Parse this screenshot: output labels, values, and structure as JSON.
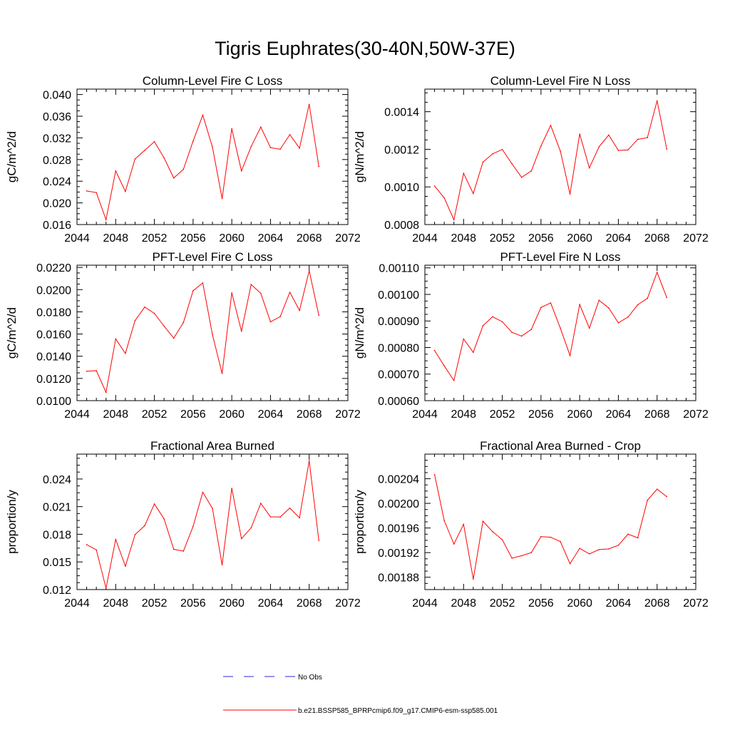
{
  "figure": {
    "title": "Tigris Euphrates(30-40N,50W-37E)"
  },
  "legend": {
    "entries": [
      {
        "label": "No Obs",
        "color": "#2a2ad0",
        "dash": true
      },
      {
        "label": "b.e21.BSSP585_BPRPcmip6.f09_g17.CMIP6-esm-ssp585.001",
        "color": "#ff0000",
        "dash": false
      }
    ]
  },
  "chart_data": [
    {
      "type": "line",
      "title": "Column-Level Fire C Loss",
      "ylabel": "gC/m^2/d",
      "xlim": [
        2044,
        2072
      ],
      "xticks": [
        2044,
        2048,
        2052,
        2056,
        2060,
        2064,
        2068,
        2072
      ],
      "ylim": [
        0.016,
        0.041
      ],
      "yticks": [
        0.016,
        0.02,
        0.024,
        0.028,
        0.032,
        0.036,
        0.04
      ],
      "ytick_labels": [
        "0.016",
        "0.020",
        "0.024",
        "0.028",
        "0.032",
        "0.036",
        "0.040"
      ],
      "x": [
        2045,
        2046,
        2047,
        2048,
        2049,
        2050,
        2051,
        2052,
        2053,
        2054,
        2055,
        2056,
        2057,
        2058,
        2059,
        2060,
        2061,
        2062,
        2063,
        2064,
        2065,
        2066,
        2067,
        2068,
        2069
      ],
      "series": [
        {
          "color": "#ff0000",
          "values": [
            0.0222,
            0.0219,
            0.0169,
            0.0259,
            0.0221,
            0.0281,
            0.0297,
            0.0313,
            0.0283,
            0.0246,
            0.0262,
            0.0314,
            0.0362,
            0.0303,
            0.0208,
            0.0337,
            0.0259,
            0.0304,
            0.034,
            0.0302,
            0.0299,
            0.0326,
            0.0301,
            0.0382,
            0.0267
          ]
        }
      ]
    },
    {
      "type": "line",
      "title": "Column-Level Fire N Loss",
      "ylabel": "gN/m^2/d",
      "xlim": [
        2044,
        2072
      ],
      "xticks": [
        2044,
        2048,
        2052,
        2056,
        2060,
        2064,
        2068,
        2072
      ],
      "ylim": [
        0.0008,
        0.00152
      ],
      "yticks": [
        0.0008,
        0.001,
        0.0012,
        0.0014
      ],
      "ytick_labels": [
        "0.0008",
        "0.0010",
        "0.0012",
        "0.0014"
      ],
      "x": [
        2045,
        2046,
        2047,
        2048,
        2049,
        2050,
        2051,
        2052,
        2053,
        2054,
        2055,
        2056,
        2057,
        2058,
        2059,
        2060,
        2061,
        2062,
        2063,
        2064,
        2065,
        2066,
        2067,
        2068,
        2069
      ],
      "series": [
        {
          "color": "#ff0000",
          "values": [
            0.001005,
            0.000942,
            0.000825,
            0.001072,
            0.000965,
            0.001132,
            0.001176,
            0.001199,
            0.001123,
            0.001051,
            0.001085,
            0.001218,
            0.001327,
            0.001191,
            0.000962,
            0.001281,
            0.001101,
            0.001213,
            0.001276,
            0.001194,
            0.001197,
            0.001253,
            0.001262,
            0.001458,
            0.001201
          ]
        }
      ]
    },
    {
      "type": "line",
      "title": "PFT-Level Fire C Loss",
      "ylabel": "gC/m^2/d",
      "xlim": [
        2044,
        2072
      ],
      "xticks": [
        2044,
        2048,
        2052,
        2056,
        2060,
        2064,
        2068,
        2072
      ],
      "ylim": [
        0.01,
        0.0222
      ],
      "yticks": [
        0.01,
        0.012,
        0.014,
        0.016,
        0.018,
        0.02,
        0.022
      ],
      "ytick_labels": [
        "0.0100",
        "0.0120",
        "0.0140",
        "0.0160",
        "0.0180",
        "0.0200",
        "0.0220"
      ],
      "x": [
        2045,
        2046,
        2047,
        2048,
        2049,
        2050,
        2051,
        2052,
        2053,
        2054,
        2055,
        2056,
        2057,
        2058,
        2059,
        2060,
        2061,
        2062,
        2063,
        2064,
        2065,
        2066,
        2067,
        2068,
        2069
      ],
      "series": [
        {
          "color": "#ff0000",
          "values": [
            0.01265,
            0.0127,
            0.01075,
            0.01556,
            0.01426,
            0.01721,
            0.01843,
            0.01786,
            0.01671,
            0.01563,
            0.01704,
            0.0199,
            0.0206,
            0.01595,
            0.01245,
            0.01971,
            0.01625,
            0.02046,
            0.01966,
            0.0171,
            0.01756,
            0.01976,
            0.01812,
            0.0217,
            0.01768
          ]
        }
      ]
    },
    {
      "type": "line",
      "title": "PFT-Level Fire N Loss",
      "ylabel": "gN/m^2/d",
      "xlim": [
        2044,
        2072
      ],
      "xticks": [
        2044,
        2048,
        2052,
        2056,
        2060,
        2064,
        2068,
        2072
      ],
      "ylim": [
        0.0006,
        0.00111
      ],
      "yticks": [
        0.0006,
        0.0007,
        0.0008,
        0.0009,
        0.001,
        0.0011
      ],
      "ytick_labels": [
        "0.00060",
        "0.00070",
        "0.00080",
        "0.00090",
        "0.00100",
        "0.00110"
      ],
      "x": [
        2045,
        2046,
        2047,
        2048,
        2049,
        2050,
        2051,
        2052,
        2053,
        2054,
        2055,
        2056,
        2057,
        2058,
        2059,
        2060,
        2061,
        2062,
        2063,
        2064,
        2065,
        2066,
        2067,
        2068,
        2069
      ],
      "series": [
        {
          "color": "#ff0000",
          "values": [
            0.000789,
            0.000731,
            0.000676,
            0.000832,
            0.000782,
            0.000882,
            0.000916,
            0.000897,
            0.000857,
            0.000843,
            0.000868,
            0.000951,
            0.000968,
            0.000873,
            0.00077,
            0.000962,
            0.000873,
            0.000978,
            0.000949,
            0.000893,
            0.000915,
            0.000961,
            0.000985,
            0.001083,
            0.000988
          ]
        }
      ]
    },
    {
      "type": "line",
      "title": "Fractional Area Burned",
      "ylabel": "proportion/y",
      "xlim": [
        2044,
        2072
      ],
      "xticks": [
        2044,
        2048,
        2052,
        2056,
        2060,
        2064,
        2068,
        2072
      ],
      "ylim": [
        0.012,
        0.0267
      ],
      "yticks": [
        0.012,
        0.015,
        0.018,
        0.021,
        0.024
      ],
      "ytick_labels": [
        "0.012",
        "0.015",
        "0.018",
        "0.021",
        "0.024"
      ],
      "x": [
        2045,
        2046,
        2047,
        2048,
        2049,
        2050,
        2051,
        2052,
        2053,
        2054,
        2055,
        2056,
        2057,
        2058,
        2059,
        2060,
        2061,
        2062,
        2063,
        2064,
        2065,
        2066,
        2067,
        2068,
        2069
      ],
      "series": [
        {
          "color": "#ff0000",
          "values": [
            0.01687,
            0.01631,
            0.01215,
            0.01744,
            0.01454,
            0.01796,
            0.01894,
            0.02129,
            0.01967,
            0.01637,
            0.01617,
            0.01885,
            0.02256,
            0.02081,
            0.01468,
            0.02298,
            0.01752,
            0.01871,
            0.02136,
            0.01989,
            0.01987,
            0.02084,
            0.01979,
            0.02598,
            0.01731
          ]
        }
      ]
    },
    {
      "type": "line",
      "title": "Fractional Area Burned - Crop",
      "ylabel": "proportion/y",
      "xlim": [
        2044,
        2072
      ],
      "xticks": [
        2044,
        2048,
        2052,
        2056,
        2060,
        2064,
        2068,
        2072
      ],
      "ylim": [
        0.00186,
        0.00208
      ],
      "yticks": [
        0.00188,
        0.00192,
        0.00196,
        0.002,
        0.00204
      ],
      "ytick_labels": [
        "0.00188",
        "0.00192",
        "0.00196",
        "0.00200",
        "0.00204"
      ],
      "x": [
        2045,
        2046,
        2047,
        2048,
        2049,
        2050,
        2051,
        2052,
        2053,
        2054,
        2055,
        2056,
        2057,
        2058,
        2059,
        2060,
        2061,
        2062,
        2063,
        2064,
        2065,
        2066,
        2067,
        2068,
        2069
      ],
      "series": [
        {
          "color": "#ff0000",
          "values": [
            0.002047,
            0.001972,
            0.001934,
            0.001966,
            0.001877,
            0.001971,
            0.001954,
            0.001941,
            0.001911,
            0.001915,
            0.00192,
            0.001946,
            0.001945,
            0.001938,
            0.001902,
            0.001927,
            0.001918,
            0.001925,
            0.001926,
            0.001932,
            0.00195,
            0.001944,
            0.002005,
            0.002023,
            0.002011
          ]
        }
      ]
    }
  ]
}
